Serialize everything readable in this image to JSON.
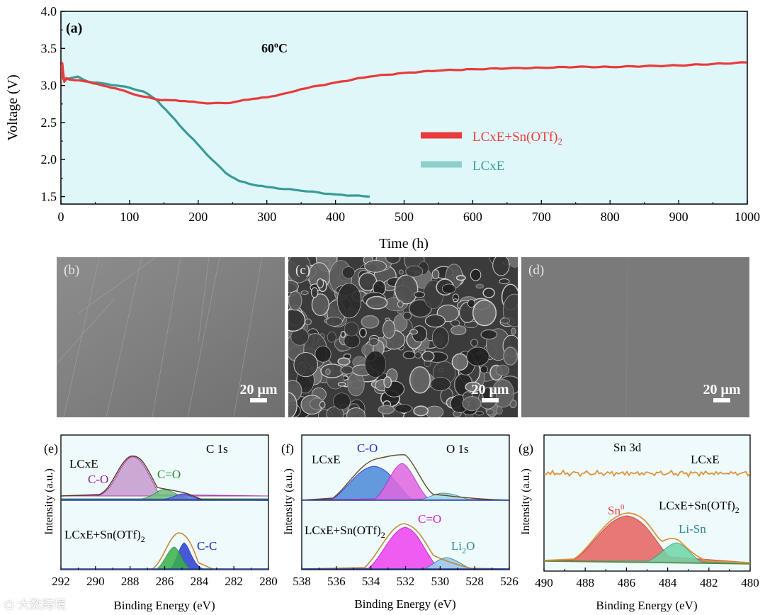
{
  "chart_data": [
    {
      "type": "line",
      "panel_label": "(a)",
      "annotation": "60°C",
      "annotation_base": "60",
      "annotation_sup": "o",
      "annotation_tail": "C",
      "xlabel": "Time (h)",
      "ylabel": "Voltage (V)",
      "xlim": [
        0,
        1000
      ],
      "ylim": [
        1.4,
        4.0
      ],
      "xticks": [
        0,
        100,
        200,
        300,
        400,
        500,
        600,
        700,
        800,
        900,
        1000
      ],
      "yticks": [
        1.5,
        2.0,
        2.5,
        3.0,
        3.5,
        4.0
      ],
      "ytick_labels": [
        "1.5",
        "2.0",
        "2.5",
        "3.0",
        "3.5",
        "4.0"
      ],
      "legend": [
        {
          "name_base": "LCxE+Sn(OTf)",
          "name_sub": "2",
          "color": "#e83b3b"
        },
        {
          "name_base": "LCxE",
          "name_sub": "",
          "color": "#3a9b96"
        }
      ],
      "series": [
        {
          "name": "LCxE+Sn(OTf)2",
          "color": "#e83b3b",
          "x": [
            0,
            1,
            2,
            3,
            5,
            8,
            12,
            20,
            40,
            60,
            80,
            100,
            120,
            140,
            160,
            180,
            200,
            220,
            240,
            260,
            280,
            300,
            320,
            350,
            400,
            450,
            500,
            550,
            600,
            650,
            700,
            750,
            800,
            850,
            900,
            950,
            1000
          ],
          "y": [
            3.05,
            3.18,
            3.3,
            3.2,
            3.05,
            3.1,
            3.08,
            3.07,
            3.05,
            3.0,
            2.96,
            2.9,
            2.85,
            2.81,
            2.8,
            2.79,
            2.77,
            2.76,
            2.76,
            2.79,
            2.82,
            2.84,
            2.88,
            2.95,
            3.04,
            3.12,
            3.17,
            3.2,
            3.22,
            3.23,
            3.24,
            3.25,
            3.25,
            3.26,
            3.27,
            3.29,
            3.31
          ]
        },
        {
          "name": "LCxE",
          "color": "#3a9b96",
          "x": [
            0,
            2,
            5,
            10,
            20,
            25,
            40,
            60,
            80,
            100,
            120,
            140,
            160,
            180,
            200,
            220,
            240,
            260,
            280,
            300,
            350,
            400,
            450
          ],
          "y": [
            3.08,
            3.12,
            3.07,
            3.09,
            3.11,
            3.12,
            3.05,
            3.03,
            3.0,
            2.97,
            2.92,
            2.8,
            2.6,
            2.39,
            2.2,
            2.0,
            1.82,
            1.71,
            1.66,
            1.63,
            1.58,
            1.53,
            1.5
          ]
        }
      ]
    },
    {
      "type": "area",
      "panel_label": "(e)",
      "title": "C 1s",
      "xlabel": "Binding Energy (eV)",
      "ylabel": "Intensity (a.u.)",
      "xlim": [
        292,
        280
      ],
      "xticks": [
        292,
        290,
        288,
        286,
        284,
        282,
        280
      ],
      "sample_labels": [
        "LCxE",
        "LCxE+Sn(OTf)2"
      ],
      "sample_top": "LCxE",
      "sample_bottom_base": "LCxE+Sn(OTf)",
      "sample_bottom_sub": "2",
      "peaks": [
        {
          "label": "C-O",
          "center": 288.0,
          "color": "#9c1d9c",
          "sample": "LCxE"
        },
        {
          "label": "C=O",
          "center": 286.0,
          "color": "#3aa33a",
          "sample": "LCxE"
        },
        {
          "label": "C-C",
          "center": 284.8,
          "color": "#2424c8",
          "sample": "LCxE+Sn(OTf)2"
        }
      ]
    },
    {
      "type": "area",
      "panel_label": "(f)",
      "title": "O 1s",
      "xlabel": "Binding Energy (eV)",
      "ylabel": "Intensity (a.u.)",
      "xlim": [
        538,
        526
      ],
      "xticks": [
        538,
        536,
        534,
        532,
        530,
        528,
        526
      ],
      "sample_labels": [
        "LCxE",
        "LCxE+Sn(OTf)2"
      ],
      "sample_top": "LCxE",
      "sample_bottom_base": "LCxE+Sn(OTf)",
      "sample_bottom_sub": "2",
      "peaks": [
        {
          "label": "C-O",
          "center": 533.8,
          "color": "#2424c8",
          "sample": "LCxE"
        },
        {
          "label": "C=O",
          "center": 531.5,
          "color": "#e62ee6",
          "sample": "LCxE+Sn(OTf)2"
        },
        {
          "label": "Li2O",
          "center": 529.7,
          "color": "#2a8a9a",
          "sample": "LCxE+Sn(OTf)2"
        }
      ],
      "li2o_base": "Li",
      "li2o_sub": "2",
      "li2o_tail": "O"
    },
    {
      "type": "area",
      "panel_label": "(g)",
      "title": "Sn 3d",
      "xlabel": "Binding Energy (eV)",
      "ylabel": "Intensity (a.u.)",
      "xlim": [
        490,
        480
      ],
      "xticks": [
        490,
        488,
        486,
        484,
        482,
        480
      ],
      "sample_labels": [
        "LCxE",
        "LCxE+Sn(OTf)2"
      ],
      "sample_top": "LCxE",
      "sample_bottom_base": "LCxE+Sn(OTf)",
      "sample_bottom_sub": "2",
      "peaks": [
        {
          "label": "Sn0",
          "center": 486.0,
          "color": "#e0464b",
          "sample": "LCxE+Sn(OTf)2"
        },
        {
          "label": "Li-Sn",
          "center": 483.6,
          "color": "#2aa37a",
          "sample": "LCxE+Sn(OTf)2"
        }
      ],
      "sn0_base": "Sn",
      "sn0_sup": "0"
    }
  ],
  "sem_images": [
    {
      "label": "(b)",
      "scale": "20 μm"
    },
    {
      "label": "(c)",
      "scale": "20 μm"
    },
    {
      "label": "(d)",
      "scale": "20 μm"
    }
  ],
  "watermark": "大数跨境",
  "colors": {
    "plot_bg": "#dff7f9",
    "xps_bg": "#eefafb",
    "red": "#e83b3b",
    "teal": "#3a9b96",
    "orange": "#e0923a"
  }
}
